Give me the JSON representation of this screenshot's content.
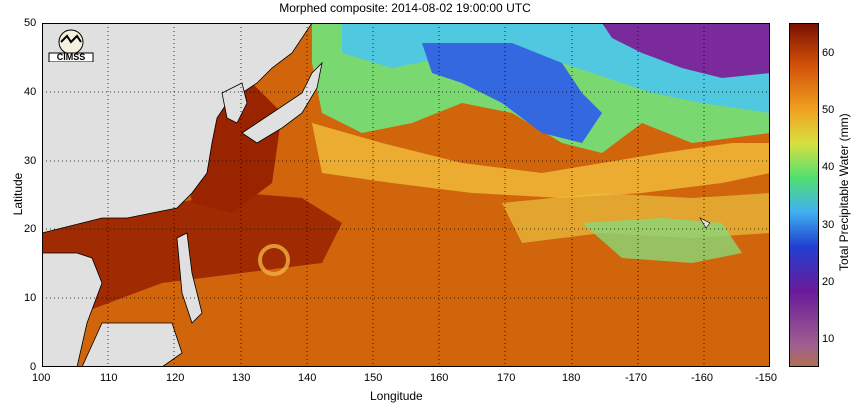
{
  "title": "Morphed composite: 2014-08-02 19:00:00 UTC",
  "x_axis": {
    "label": "Longitude",
    "ticks": [
      "100",
      "110",
      "120",
      "130",
      "140",
      "150",
      "160",
      "170",
      "180",
      "-170",
      "-160",
      "-150"
    ]
  },
  "y_axis": {
    "label": "Latitude",
    "ticks": [
      "0",
      "10",
      "20",
      "30",
      "40",
      "50"
    ]
  },
  "colorbar": {
    "label": "Total Precipitable Water (mm)",
    "ticks": [
      "10",
      "20",
      "30",
      "40",
      "50",
      "60"
    ],
    "min": 5,
    "max": 65
  },
  "logo_text": "CIMSS",
  "colors": {
    "land": "#e0e0e0",
    "deep_orange": "#8c1a00",
    "orange": "#d0600a",
    "light_orange": "#f0a020",
    "yellow": "#f0d040",
    "green": "#70e070",
    "cyan": "#40d0e0",
    "blue": "#3060e0",
    "purple": "#7a2a9a"
  }
}
